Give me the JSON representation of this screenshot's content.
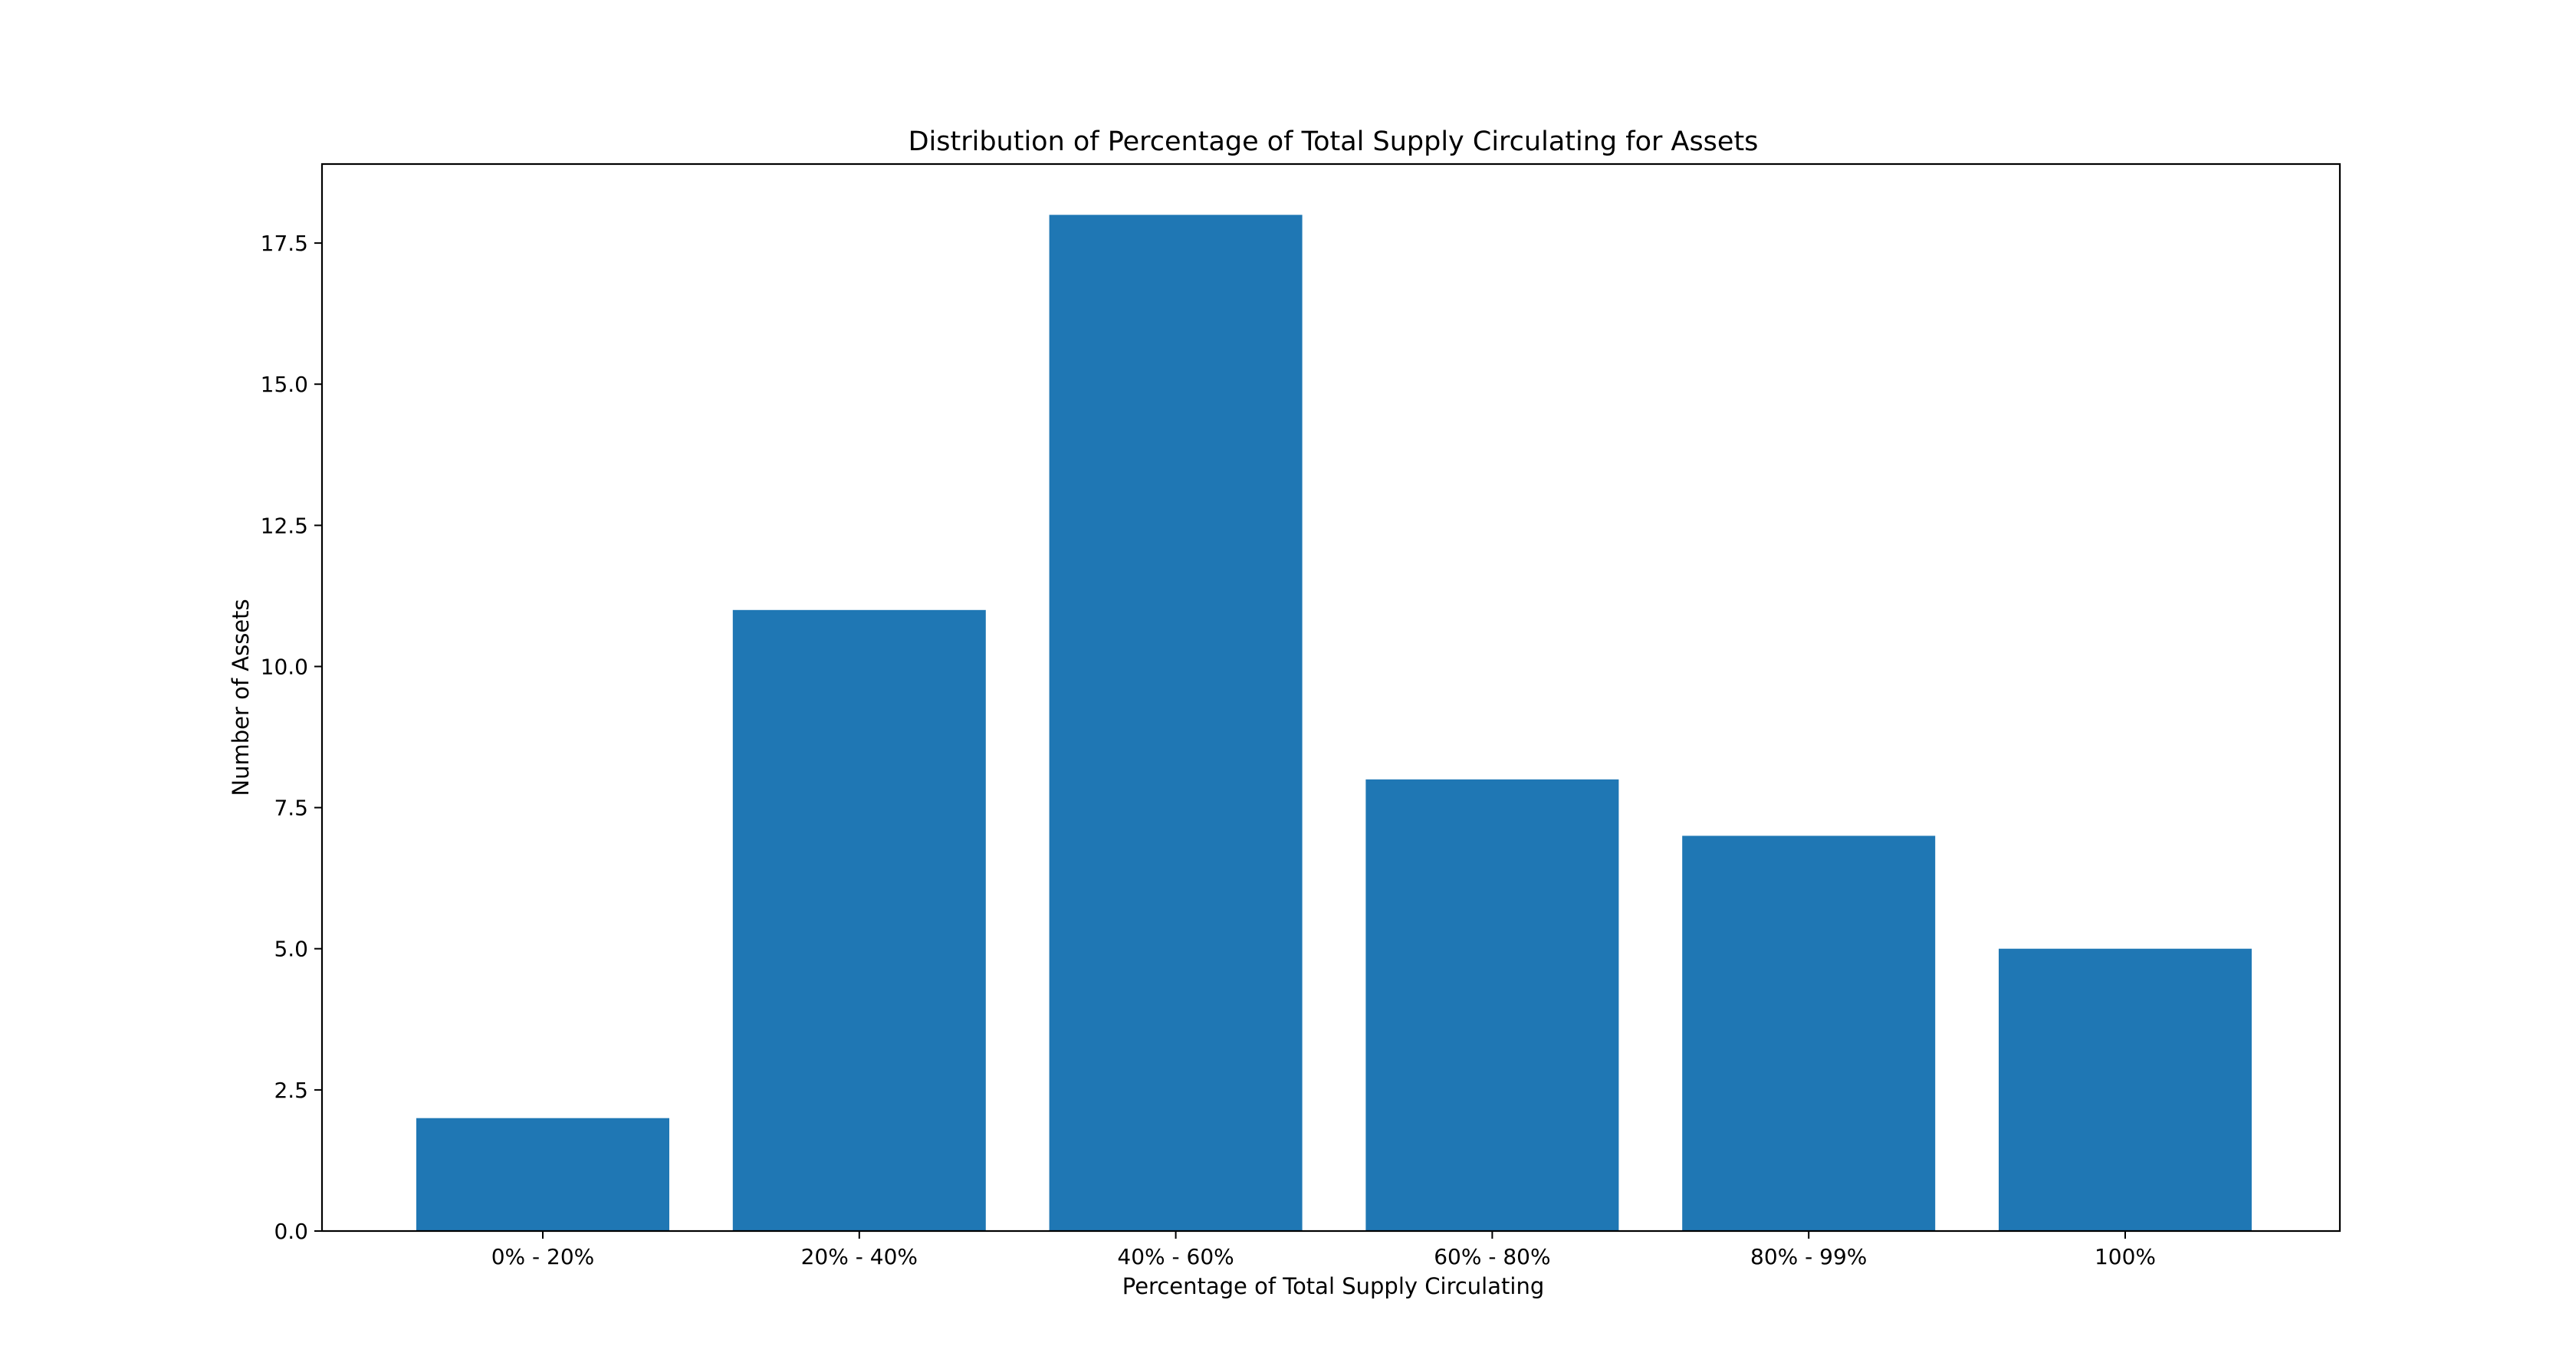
{
  "chart_data": {
    "type": "bar",
    "title": "Distribution of Percentage of Total Supply Circulating for Assets",
    "xlabel": "Percentage of Total Supply Circulating",
    "ylabel": "Number of Assets",
    "categories": [
      "0% - 20%",
      "20% - 40%",
      "40% - 60%",
      "60% - 80%",
      "80% - 99%",
      "100%"
    ],
    "values": [
      2,
      11,
      18,
      8,
      7,
      5
    ],
    "ylim": [
      0,
      18.9
    ],
    "yticks": [
      "0.0",
      "2.5",
      "5.0",
      "7.5",
      "10.0",
      "12.5",
      "15.0",
      "17.5"
    ],
    "bar_color": "#1f77b4",
    "grid": false,
    "legend": "none"
  }
}
